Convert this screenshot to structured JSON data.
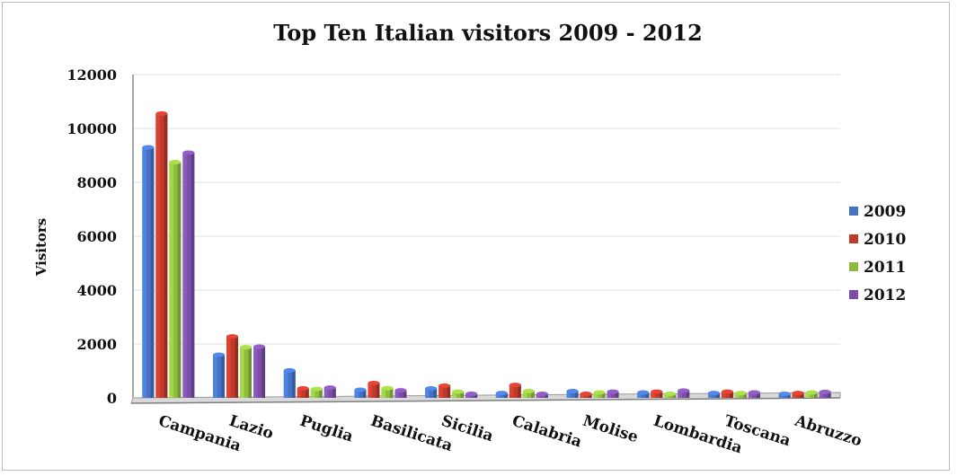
{
  "chart_data": {
    "type": "bar",
    "title": "Top Ten Italian visitors 2009 - 2012",
    "xlabel": "",
    "ylabel": "Visitors",
    "ylim": [
      0,
      12000
    ],
    "yticks": [
      "0",
      "2000",
      "4000",
      "6000",
      "8000",
      "10000",
      "12000"
    ],
    "grid": true,
    "legend_position": "right",
    "categories": [
      "Campania",
      "Lazio",
      "Puglia",
      "Basilicata",
      "Sicilia",
      "Calabria",
      "Molise",
      "Lombardia",
      "Toscana",
      "Abruzzo"
    ],
    "series": [
      {
        "name": "2009",
        "color": "#4472c4",
        "values": [
          9300,
          1600,
          1020,
          300,
          350,
          180,
          250,
          200,
          180,
          150
        ]
      },
      {
        "name": "2010",
        "color": "#c0392b",
        "values": [
          10550,
          2280,
          350,
          550,
          450,
          480,
          150,
          230,
          230,
          180
        ]
      },
      {
        "name": "2011",
        "color": "#8fbc3f",
        "values": [
          8750,
          1880,
          330,
          360,
          230,
          250,
          200,
          150,
          180,
          200
        ]
      },
      {
        "name": "2012",
        "color": "#7b4fa6",
        "values": [
          9100,
          1900,
          380,
          280,
          150,
          150,
          230,
          270,
          200,
          220
        ]
      }
    ]
  }
}
